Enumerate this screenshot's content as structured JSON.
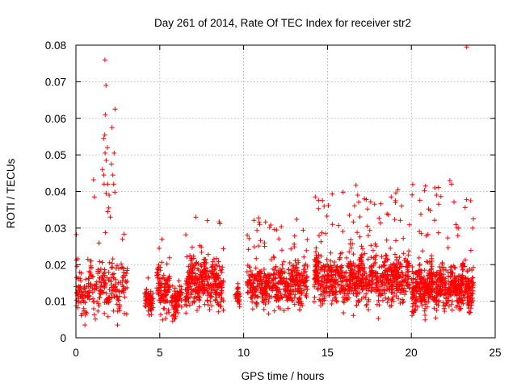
{
  "chart_data": {
    "type": "scatter",
    "title": "Day 261 of 2014, Rate Of TEC Index for receiver str2",
    "xlabel": "GPS time / hours",
    "ylabel": "ROTI / TECUs",
    "xlim": [
      0,
      25
    ],
    "ylim": [
      0,
      0.08
    ],
    "xticks": [
      0,
      5,
      10,
      15,
      20,
      25
    ],
    "xtick_labels": [
      "0",
      "5",
      "10",
      "15",
      "20",
      "25"
    ],
    "yticks": [
      0,
      0.01,
      0.02,
      0.03,
      0.04,
      0.05,
      0.06,
      0.07,
      0.08
    ],
    "ytick_labels": [
      "0",
      "0.01",
      "0.02",
      "0.03",
      "0.04",
      "0.05",
      "0.06",
      "0.07",
      "0.08"
    ],
    "grid": true,
    "marker": "+",
    "color": "#ff0000",
    "segments": [
      {
        "start": 0.0,
        "end": 3.1,
        "base": 0.011,
        "spread": 0.011,
        "peak": 0.03,
        "density": 260
      },
      {
        "start": 4.1,
        "end": 4.6,
        "base": 0.009,
        "spread": 0.005,
        "peak": 0.018,
        "density": 70
      },
      {
        "start": 4.8,
        "end": 5.6,
        "base": 0.011,
        "spread": 0.01,
        "peak": 0.033,
        "density": 110
      },
      {
        "start": 5.7,
        "end": 6.3,
        "base": 0.009,
        "spread": 0.006,
        "peak": 0.02,
        "density": 80
      },
      {
        "start": 6.5,
        "end": 8.8,
        "base": 0.013,
        "spread": 0.01,
        "peak": 0.035,
        "density": 330
      },
      {
        "start": 9.5,
        "end": 9.8,
        "base": 0.01,
        "spread": 0.004,
        "peak": 0.015,
        "density": 30
      },
      {
        "start": 10.2,
        "end": 13.8,
        "base": 0.013,
        "spread": 0.009,
        "peak": 0.033,
        "density": 480
      },
      {
        "start": 14.2,
        "end": 19.9,
        "base": 0.014,
        "spread": 0.01,
        "peak": 0.04,
        "density": 800
      },
      {
        "start": 20.0,
        "end": 23.7,
        "base": 0.012,
        "spread": 0.009,
        "peak": 0.042,
        "density": 620
      }
    ],
    "highlights": [
      {
        "x": 1.73,
        "y": 0.076
      },
      {
        "x": 1.79,
        "y": 0.069
      },
      {
        "x": 2.33,
        "y": 0.0625
      },
      {
        "x": 1.75,
        "y": 0.061
      },
      {
        "x": 2.15,
        "y": 0.0575
      },
      {
        "x": 1.72,
        "y": 0.0555
      },
      {
        "x": 1.65,
        "y": 0.0545
      },
      {
        "x": 1.88,
        "y": 0.052
      },
      {
        "x": 2.28,
        "y": 0.0505
      },
      {
        "x": 1.74,
        "y": 0.0505
      },
      {
        "x": 1.8,
        "y": 0.0485
      },
      {
        "x": 2.12,
        "y": 0.0475
      },
      {
        "x": 1.58,
        "y": 0.046
      },
      {
        "x": 1.66,
        "y": 0.0445
      },
      {
        "x": 2.2,
        "y": 0.0445
      },
      {
        "x": 1.68,
        "y": 0.042
      },
      {
        "x": 1.9,
        "y": 0.042
      },
      {
        "x": 2.25,
        "y": 0.042
      },
      {
        "x": 1.05,
        "y": 0.0432
      },
      {
        "x": 1.98,
        "y": 0.039
      },
      {
        "x": 1.8,
        "y": 0.0395
      },
      {
        "x": 2.32,
        "y": 0.0398
      },
      {
        "x": 1.1,
        "y": 0.0385
      },
      {
        "x": 1.96,
        "y": 0.0355
      },
      {
        "x": 1.9,
        "y": 0.0345
      },
      {
        "x": 2.05,
        "y": 0.033
      },
      {
        "x": 14.7,
        "y": 0.0375
      },
      {
        "x": 14.8,
        "y": 0.036
      },
      {
        "x": 16.7,
        "y": 0.0417
      },
      {
        "x": 16.8,
        "y": 0.039
      },
      {
        "x": 17.2,
        "y": 0.038
      },
      {
        "x": 19.2,
        "y": 0.0405
      },
      {
        "x": 18.8,
        "y": 0.0385
      },
      {
        "x": 19.05,
        "y": 0.037
      },
      {
        "x": 21.4,
        "y": 0.041
      },
      {
        "x": 21.5,
        "y": 0.039
      },
      {
        "x": 22.3,
        "y": 0.043
      },
      {
        "x": 22.4,
        "y": 0.042
      },
      {
        "x": 23.3,
        "y": 0.0795
      },
      {
        "x": 23.7,
        "y": 0.0325
      },
      {
        "x": 20.6,
        "y": 0.0285
      },
      {
        "x": 16.3,
        "y": 0.0335
      },
      {
        "x": 15.3,
        "y": 0.031
      }
    ]
  }
}
